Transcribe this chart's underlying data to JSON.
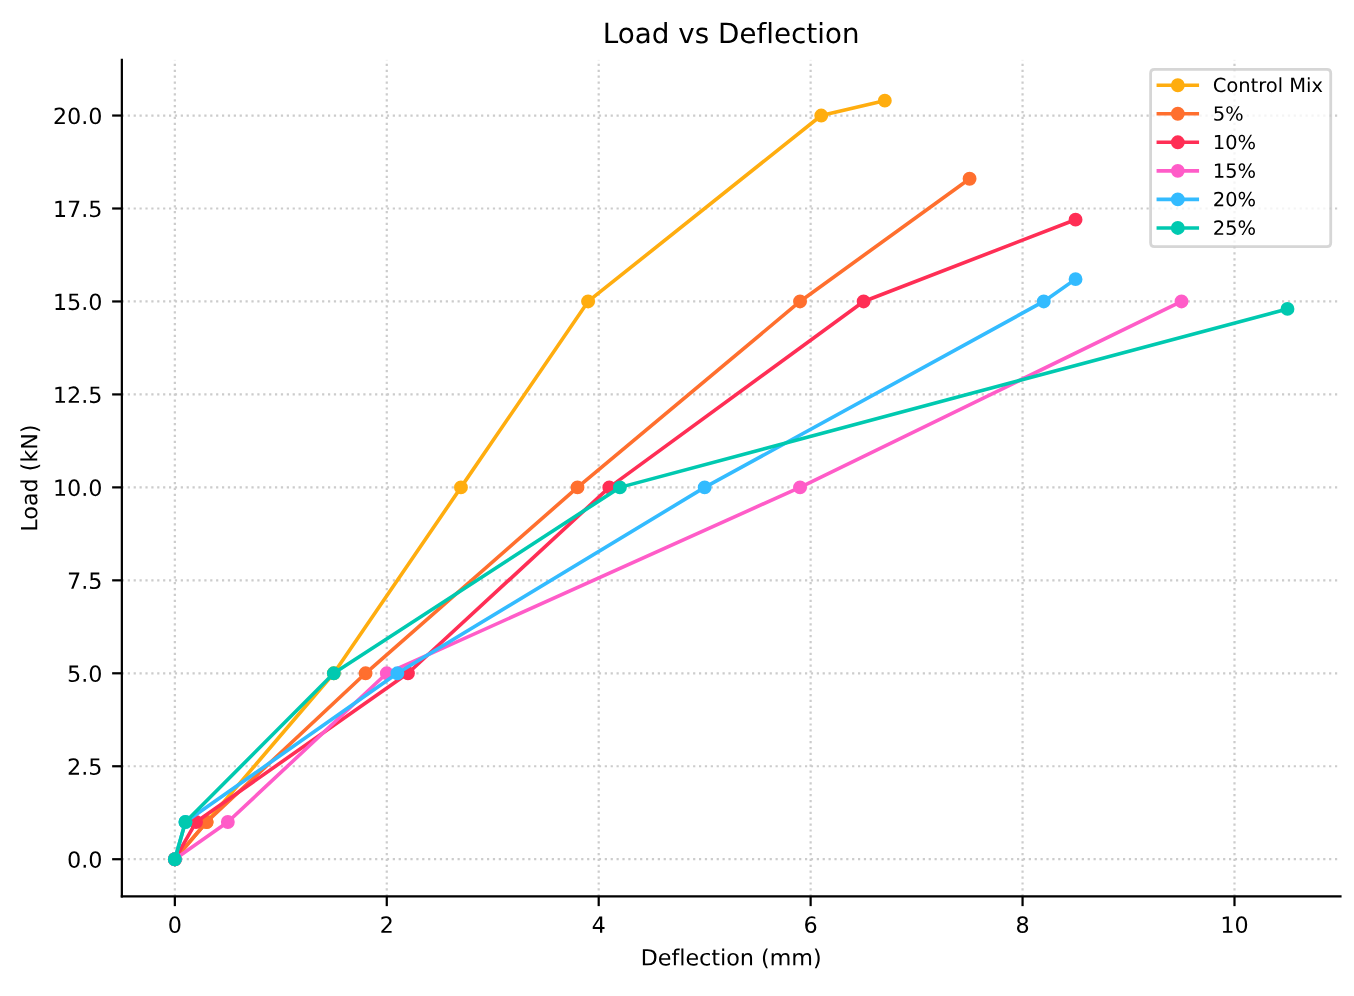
{
  "chart_data": {
    "type": "line",
    "title": "Load vs Deflection",
    "xlabel": "Deflection (mm)",
    "ylabel": "Load (kN)",
    "xlim": [
      -0.5,
      11.0
    ],
    "ylim": [
      -1.0,
      21.5
    ],
    "xticks": [
      0,
      2,
      4,
      6,
      8,
      10
    ],
    "yticks": [
      {
        "value": 0,
        "label": "0.0"
      },
      2.5,
      {
        "value": 5,
        "label": "5.0"
      },
      7.5,
      {
        "value": 10,
        "label": "10.0"
      },
      12.5,
      {
        "value": 15,
        "label": "15.0"
      },
      17.5,
      {
        "value": 20,
        "label": "20.0"
      }
    ],
    "grid": true,
    "legend": "top right",
    "marker": "circle",
    "line_style": "solid",
    "series": [
      {
        "name": "Control Mix",
        "color": "#ffad0f",
        "x": [
          0,
          0.3,
          1.5,
          2.7,
          3.9,
          6.1,
          6.7
        ],
        "values": [
          0,
          1,
          5,
          10,
          15,
          20,
          20.4
        ]
      },
      {
        "name": "5%",
        "color": "#ff6f2e",
        "x": [
          0,
          0.3,
          1.8,
          3.8,
          5.9,
          7.5
        ],
        "values": [
          0,
          1,
          5,
          10,
          15,
          18.3
        ]
      },
      {
        "name": "10%",
        "color": "#ff2e55",
        "x": [
          0,
          0.2,
          2.2,
          4.1,
          6.5,
          8.5
        ],
        "values": [
          0,
          1,
          5,
          10,
          15,
          17.2
        ]
      },
      {
        "name": "15%",
        "color": "#ff5cc8",
        "x": [
          0,
          0.5,
          2.0,
          5.9,
          9.5
        ],
        "values": [
          0,
          1,
          5,
          10,
          15
        ]
      },
      {
        "name": "20%",
        "color": "#33bbff",
        "x": [
          0,
          0.1,
          2.1,
          5.0,
          8.2,
          8.5
        ],
        "values": [
          0,
          1,
          5,
          10,
          15,
          15.6
        ]
      },
      {
        "name": "25%",
        "color": "#00c9b0",
        "x": [
          0,
          0.1,
          1.5,
          4.2,
          10.5
        ],
        "values": [
          0,
          1,
          5,
          10,
          14.8
        ]
      }
    ]
  }
}
